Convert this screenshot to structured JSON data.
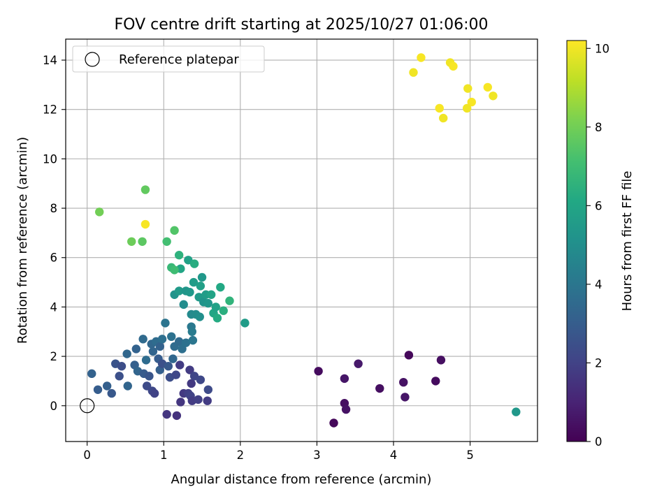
{
  "chart_data": {
    "type": "scatter",
    "title": "FOV centre drift starting at 2025/10/27 01:06:00",
    "xlabel": "Angular distance from reference (arcmin)",
    "ylabel": "Rotation from reference (arcmin)",
    "xlim": [
      -0.28,
      5.88
    ],
    "ylim": [
      -1.45,
      14.85
    ],
    "xticks": [
      0,
      1,
      2,
      3,
      4,
      5
    ],
    "yticks": [
      0,
      2,
      4,
      6,
      8,
      10,
      12,
      14
    ],
    "grid": true,
    "legend": {
      "placement": "top-left",
      "entries": [
        "Reference platepar"
      ]
    },
    "reference_point": {
      "x": 0,
      "y": 0
    },
    "colorbar": {
      "label": "Hours from first FF file",
      "range": [
        0,
        10.2
      ],
      "ticks": [
        0,
        2,
        4,
        6,
        8,
        10
      ],
      "colormap": "viridis"
    },
    "points": [
      {
        "x": 3.02,
        "y": 1.4,
        "h": 0.3
      },
      {
        "x": 3.22,
        "y": -0.7,
        "h": 0.2
      },
      {
        "x": 3.36,
        "y": 1.1,
        "h": 0.6
      },
      {
        "x": 3.36,
        "y": 0.1,
        "h": 0.4
      },
      {
        "x": 3.38,
        "y": -0.15,
        "h": 0.5
      },
      {
        "x": 3.54,
        "y": 1.7,
        "h": 0.7
      },
      {
        "x": 3.82,
        "y": 0.7,
        "h": 0.4
      },
      {
        "x": 4.13,
        "y": 0.95,
        "h": 0.5
      },
      {
        "x": 4.15,
        "y": 0.35,
        "h": 0.6
      },
      {
        "x": 4.2,
        "y": 2.05,
        "h": 0.2
      },
      {
        "x": 4.55,
        "y": 1.0,
        "h": 0.3
      },
      {
        "x": 4.62,
        "y": 1.85,
        "h": 0.4
      },
      {
        "x": 0.06,
        "y": 1.3,
        "h": 3.2
      },
      {
        "x": 0.14,
        "y": 0.65,
        "h": 3.0
      },
      {
        "x": 0.26,
        "y": 0.8,
        "h": 3.1
      },
      {
        "x": 0.32,
        "y": 0.5,
        "h": 2.8
      },
      {
        "x": 0.37,
        "y": 1.7,
        "h": 2.6
      },
      {
        "x": 0.42,
        "y": 1.2,
        "h": 2.5
      },
      {
        "x": 0.45,
        "y": 1.6,
        "h": 2.4
      },
      {
        "x": 0.53,
        "y": 0.8,
        "h": 3.3
      },
      {
        "x": 0.52,
        "y": 2.1,
        "h": 3.4
      },
      {
        "x": 0.62,
        "y": 1.65,
        "h": 3.1
      },
      {
        "x": 0.64,
        "y": 2.3,
        "h": 3.2
      },
      {
        "x": 0.66,
        "y": 1.4,
        "h": 3.3
      },
      {
        "x": 0.73,
        "y": 2.7,
        "h": 3.5
      },
      {
        "x": 0.74,
        "y": 1.3,
        "h": 2.9
      },
      {
        "x": 0.77,
        "y": 1.85,
        "h": 3.6
      },
      {
        "x": 0.78,
        "y": 0.8,
        "h": 2.3
      },
      {
        "x": 0.81,
        "y": 1.2,
        "h": 2.7
      },
      {
        "x": 0.84,
        "y": 2.5,
        "h": 3.4
      },
      {
        "x": 0.85,
        "y": 0.6,
        "h": 2.2
      },
      {
        "x": 0.86,
        "y": 2.2,
        "h": 3.3
      },
      {
        "x": 0.88,
        "y": 0.5,
        "h": 2.0
      },
      {
        "x": 0.9,
        "y": 2.6,
        "h": 3.6
      },
      {
        "x": 0.93,
        "y": 1.9,
        "h": 3.0
      },
      {
        "x": 0.95,
        "y": 2.4,
        "h": 3.2
      },
      {
        "x": 0.95,
        "y": 1.45,
        "h": 3.1
      },
      {
        "x": 0.98,
        "y": 1.7,
        "h": 2.5
      },
      {
        "x": 0.98,
        "y": 2.7,
        "h": 3.7
      },
      {
        "x": 1.02,
        "y": 3.35,
        "h": 3.9
      },
      {
        "x": 1.04,
        "y": -0.35,
        "h": 1.6
      },
      {
        "x": 1.06,
        "y": 1.6,
        "h": 2.8
      },
      {
        "x": 1.08,
        "y": 1.15,
        "h": 2.4
      },
      {
        "x": 1.1,
        "y": 2.8,
        "h": 3.8
      },
      {
        "x": 1.12,
        "y": 1.9,
        "h": 3.4
      },
      {
        "x": 1.14,
        "y": 2.4,
        "h": 3.6
      },
      {
        "x": 1.16,
        "y": 1.25,
        "h": 2.2
      },
      {
        "x": 1.17,
        "y": -0.4,
        "h": 1.5
      },
      {
        "x": 1.2,
        "y": 2.6,
        "h": 3.5
      },
      {
        "x": 1.21,
        "y": 1.65,
        "h": 1.8
      },
      {
        "x": 1.22,
        "y": 0.15,
        "h": 1.6
      },
      {
        "x": 1.24,
        "y": 2.3,
        "h": 3.7
      },
      {
        "x": 1.26,
        "y": 0.5,
        "h": 1.7
      },
      {
        "x": 1.29,
        "y": 2.55,
        "h": 3.8
      },
      {
        "x": 1.32,
        "y": 0.5,
        "h": 1.9
      },
      {
        "x": 1.34,
        "y": 1.45,
        "h": 1.8
      },
      {
        "x": 1.35,
        "y": 0.4,
        "h": 2.0
      },
      {
        "x": 1.36,
        "y": 0.9,
        "h": 1.7
      },
      {
        "x": 1.37,
        "y": 0.2,
        "h": 1.8
      },
      {
        "x": 1.36,
        "y": 3.2,
        "h": 4.1
      },
      {
        "x": 1.38,
        "y": 2.65,
        "h": 4.0
      },
      {
        "x": 1.4,
        "y": 1.2,
        "h": 2.1
      },
      {
        "x": 1.45,
        "y": 0.25,
        "h": 1.9
      },
      {
        "x": 1.48,
        "y": 1.05,
        "h": 2.2
      },
      {
        "x": 1.57,
        "y": 0.2,
        "h": 1.8
      },
      {
        "x": 1.58,
        "y": 0.65,
        "h": 2.3
      },
      {
        "x": 1.37,
        "y": 3.0,
        "h": 4.2
      },
      {
        "x": 1.14,
        "y": 4.5,
        "h": 5.2
      },
      {
        "x": 1.2,
        "y": 4.65,
        "h": 5.5
      },
      {
        "x": 1.26,
        "y": 4.1,
        "h": 4.9
      },
      {
        "x": 1.29,
        "y": 4.65,
        "h": 5.3
      },
      {
        "x": 1.32,
        "y": 5.9,
        "h": 5.8
      },
      {
        "x": 1.34,
        "y": 4.6,
        "h": 5.4
      },
      {
        "x": 1.36,
        "y": 3.7,
        "h": 4.8
      },
      {
        "x": 1.39,
        "y": 5.0,
        "h": 5.6
      },
      {
        "x": 1.4,
        "y": 5.75,
        "h": 6.3
      },
      {
        "x": 1.42,
        "y": 3.7,
        "h": 4.9
      },
      {
        "x": 1.46,
        "y": 4.4,
        "h": 5.5
      },
      {
        "x": 1.47,
        "y": 3.6,
        "h": 5.0
      },
      {
        "x": 1.48,
        "y": 4.85,
        "h": 5.7
      },
      {
        "x": 1.5,
        "y": 5.2,
        "h": 5.4
      },
      {
        "x": 1.52,
        "y": 4.2,
        "h": 5.2
      },
      {
        "x": 1.55,
        "y": 4.5,
        "h": 5.6
      },
      {
        "x": 1.58,
        "y": 4.15,
        "h": 5.3
      },
      {
        "x": 1.62,
        "y": 4.5,
        "h": 5.9
      },
      {
        "x": 1.65,
        "y": 3.75,
        "h": 6.0
      },
      {
        "x": 1.68,
        "y": 4.0,
        "h": 5.8
      },
      {
        "x": 1.7,
        "y": 3.55,
        "h": 6.2
      },
      {
        "x": 1.74,
        "y": 4.8,
        "h": 6.1
      },
      {
        "x": 1.78,
        "y": 3.85,
        "h": 6.4
      },
      {
        "x": 1.86,
        "y": 4.25,
        "h": 6.6
      },
      {
        "x": 2.06,
        "y": 3.35,
        "h": 5.6
      },
      {
        "x": 1.22,
        "y": 5.55,
        "h": 6.0
      },
      {
        "x": 1.2,
        "y": 6.1,
        "h": 6.5
      },
      {
        "x": 1.1,
        "y": 5.6,
        "h": 6.8
      },
      {
        "x": 1.14,
        "y": 5.5,
        "h": 7.0
      },
      {
        "x": 1.04,
        "y": 6.65,
        "h": 7.1
      },
      {
        "x": 1.14,
        "y": 7.1,
        "h": 7.4
      },
      {
        "x": 0.72,
        "y": 6.65,
        "h": 7.6
      },
      {
        "x": 0.58,
        "y": 6.65,
        "h": 7.9
      },
      {
        "x": 0.76,
        "y": 7.35,
        "h": 10.1
      },
      {
        "x": 0.76,
        "y": 8.75,
        "h": 7.7
      },
      {
        "x": 0.16,
        "y": 7.85,
        "h": 8.0
      },
      {
        "x": 5.6,
        "y": -0.25,
        "h": 5.4
      },
      {
        "x": 4.26,
        "y": 13.5,
        "h": 10.0
      },
      {
        "x": 4.36,
        "y": 14.1,
        "h": 10.1
      },
      {
        "x": 4.74,
        "y": 13.9,
        "h": 10.0
      },
      {
        "x": 4.78,
        "y": 13.75,
        "h": 10.1
      },
      {
        "x": 4.97,
        "y": 12.85,
        "h": 10.0
      },
      {
        "x": 5.23,
        "y": 12.9,
        "h": 10.1
      },
      {
        "x": 5.3,
        "y": 12.55,
        "h": 10.0
      },
      {
        "x": 5.02,
        "y": 12.3,
        "h": 10.1
      },
      {
        "x": 4.96,
        "y": 12.05,
        "h": 10.0
      },
      {
        "x": 4.6,
        "y": 12.05,
        "h": 10.1
      },
      {
        "x": 4.65,
        "y": 11.65,
        "h": 10.0
      }
    ]
  }
}
